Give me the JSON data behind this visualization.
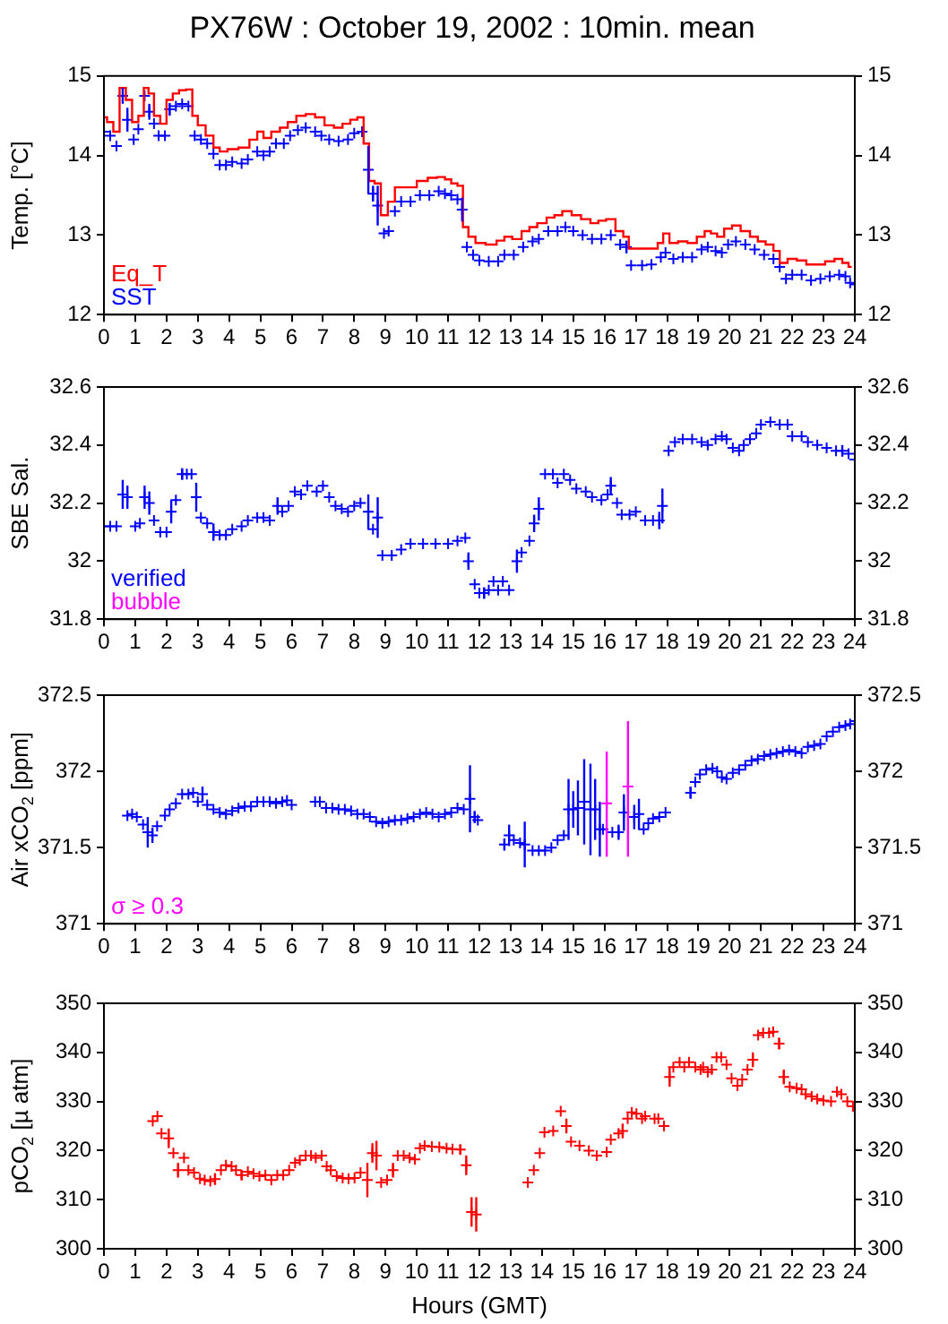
{
  "chart_data": [
    {
      "type": "scatter",
      "title": "PX76W : October 19, 2002 : 10min. mean",
      "ylabel": "Temp. [°C]",
      "xlim": [
        0,
        24
      ],
      "xticks": [
        0,
        1,
        2,
        3,
        4,
        5,
        6,
        7,
        8,
        9,
        10,
        11,
        12,
        13,
        14,
        15,
        16,
        17,
        18,
        19,
        20,
        21,
        22,
        23,
        24
      ],
      "ylim": [
        12,
        15
      ],
      "yticks": [
        12,
        13,
        14,
        15
      ],
      "y2lim": [
        12,
        15
      ],
      "y2ticks": [
        12,
        13,
        14,
        15
      ],
      "legend": "bottom left",
      "marker": "cross",
      "series": [
        {
          "name": "Eq_T",
          "color": "#ff0000",
          "type": "step",
          "marker": "none",
          "x": [
            0,
            0.2,
            0.4,
            0.6,
            0.8,
            1.0,
            1.2,
            1.35,
            1.5,
            1.7,
            1.9,
            2.1,
            2.3,
            2.5,
            2.75,
            2.9,
            3.1,
            3.4,
            3.6,
            3.8,
            4.1,
            4.5,
            4.8,
            5.0,
            5.2,
            5.5,
            5.75,
            6.0,
            6.3,
            6.6,
            6.9,
            7.2,
            7.5,
            7.75,
            8.0,
            8.2,
            8.4,
            8.55,
            8.75,
            8.95,
            9.2,
            9.4,
            9.8,
            10.2,
            10.5,
            10.8,
            11.0,
            11.2,
            11.4,
            11.55,
            11.75,
            12.0,
            12.4,
            12.7,
            12.9,
            13.2,
            13.5,
            13.7,
            14.0,
            14.3,
            14.5,
            14.8,
            15.1,
            15.4,
            15.7,
            15.9,
            16.2,
            16.5,
            16.7,
            16.85,
            17.3,
            17.6,
            17.8,
            17.95,
            18.2,
            18.5,
            18.8,
            19.1,
            19.3,
            19.5,
            19.7,
            19.95,
            20.2,
            20.5,
            20.8,
            21.0,
            21.3,
            21.5,
            21.7,
            22.0,
            22.3,
            22.6,
            22.9,
            23.2,
            23.5,
            23.7,
            23.9
          ],
          "values": [
            14.48,
            14.42,
            14.3,
            14.85,
            14.7,
            14.42,
            14.5,
            14.85,
            14.78,
            14.5,
            14.4,
            14.7,
            14.78,
            14.82,
            14.83,
            14.5,
            14.38,
            14.25,
            14.1,
            14.05,
            14.08,
            14.1,
            14.2,
            14.3,
            14.22,
            14.3,
            14.35,
            14.42,
            14.5,
            14.52,
            14.48,
            14.38,
            14.35,
            14.4,
            14.45,
            14.48,
            14.15,
            13.68,
            13.65,
            13.25,
            13.42,
            13.6,
            13.6,
            13.68,
            13.72,
            13.73,
            13.7,
            13.65,
            13.62,
            13.1,
            12.98,
            12.9,
            12.88,
            12.93,
            12.98,
            12.95,
            13.05,
            13.1,
            13.15,
            13.22,
            13.25,
            13.3,
            13.25,
            13.2,
            13.15,
            13.18,
            13.2,
            13.05,
            12.98,
            12.83,
            12.83,
            12.83,
            12.9,
            13.02,
            12.9,
            12.92,
            12.9,
            12.98,
            13.05,
            13.02,
            12.98,
            13.08,
            13.12,
            13.05,
            12.98,
            12.92,
            12.88,
            12.8,
            12.65,
            12.7,
            12.68,
            12.63,
            12.63,
            12.67,
            12.7,
            12.65,
            12.6
          ]
        },
        {
          "name": "SST",
          "color": "#0000ff",
          "x": [
            0,
            0.2,
            0.4,
            0.6,
            0.75,
            0.95,
            1.1,
            1.3,
            1.45,
            1.6,
            1.75,
            1.95,
            2.1,
            2.3,
            2.5,
            2.7,
            2.9,
            3.1,
            3.3,
            3.5,
            3.7,
            3.9,
            4.1,
            4.4,
            4.6,
            4.9,
            5.1,
            5.3,
            5.5,
            5.75,
            5.95,
            6.2,
            6.45,
            6.75,
            6.95,
            7.2,
            7.5,
            7.8,
            8.0,
            8.25,
            8.45,
            8.6,
            8.75,
            8.95,
            9.1,
            9.3,
            9.5,
            9.8,
            10.1,
            10.4,
            10.7,
            10.9,
            11.1,
            11.3,
            11.45,
            11.6,
            11.8,
            12.0,
            12.3,
            12.6,
            12.8,
            13.1,
            13.4,
            13.7,
            13.9,
            14.2,
            14.5,
            14.75,
            15.0,
            15.3,
            15.6,
            15.9,
            16.2,
            16.5,
            16.7,
            16.85,
            17.2,
            17.5,
            17.8,
            17.95,
            18.2,
            18.5,
            18.8,
            19.1,
            19.3,
            19.55,
            19.75,
            19.95,
            20.2,
            20.5,
            20.8,
            21.1,
            21.4,
            21.6,
            21.8,
            22.0,
            22.3,
            22.6,
            22.9,
            23.2,
            23.5,
            23.7,
            23.85,
            24.0
          ],
          "values": [
            14.3,
            14.25,
            14.12,
            14.75,
            14.45,
            14.2,
            14.33,
            14.75,
            14.55,
            14.4,
            14.25,
            14.25,
            14.58,
            14.62,
            14.65,
            14.62,
            14.25,
            14.2,
            14.15,
            14.02,
            13.88,
            13.88,
            13.92,
            13.9,
            13.95,
            14.05,
            14.0,
            14.05,
            14.15,
            14.15,
            14.25,
            14.32,
            14.35,
            14.3,
            14.25,
            14.2,
            14.18,
            14.2,
            14.28,
            14.3,
            13.82,
            13.52,
            13.37,
            13.02,
            13.05,
            13.3,
            13.42,
            13.42,
            13.5,
            13.5,
            13.55,
            13.52,
            13.5,
            13.45,
            13.32,
            12.85,
            12.75,
            12.68,
            12.67,
            12.67,
            12.75,
            12.75,
            12.85,
            12.92,
            12.95,
            13.05,
            13.05,
            13.1,
            13.05,
            13.0,
            12.95,
            12.95,
            13.0,
            12.88,
            12.85,
            12.62,
            12.62,
            12.63,
            12.72,
            12.78,
            12.7,
            12.72,
            12.72,
            12.82,
            12.85,
            12.8,
            12.78,
            12.88,
            12.92,
            12.88,
            12.82,
            12.75,
            12.7,
            12.6,
            12.45,
            12.5,
            12.5,
            12.43,
            12.45,
            12.48,
            12.5,
            12.48,
            12.4,
            12.38
          ],
          "errors": [
            null,
            null,
            null,
            0.1,
            0.15,
            null,
            null,
            null,
            0.1,
            null,
            null,
            null,
            0.08,
            null,
            null,
            null,
            null,
            null,
            null,
            null,
            null,
            null,
            null,
            null,
            null,
            null,
            null,
            null,
            null,
            null,
            null,
            null,
            null,
            null,
            null,
            null,
            null,
            null,
            null,
            null,
            0.3,
            0.1,
            0.25,
            null,
            null,
            null,
            null,
            null,
            null,
            null,
            null,
            null,
            null,
            null,
            0.15,
            null,
            null,
            null,
            null,
            null,
            null,
            null,
            null,
            null,
            null,
            null,
            null,
            null,
            null,
            null,
            null,
            null,
            null,
            null,
            0.08,
            null,
            null,
            null,
            null,
            null,
            null,
            null,
            null,
            null,
            null,
            null,
            null,
            null,
            null,
            null,
            null,
            null,
            null,
            null,
            null,
            null,
            null,
            null,
            null,
            null,
            null,
            null,
            null,
            null
          ]
        }
      ]
    },
    {
      "type": "scatter",
      "ylabel": "SBE Sal.",
      "xlim": [
        0,
        24
      ],
      "xticks": [
        0,
        1,
        2,
        3,
        4,
        5,
        6,
        7,
        8,
        9,
        10,
        11,
        12,
        13,
        14,
        15,
        16,
        17,
        18,
        19,
        20,
        21,
        22,
        23,
        24
      ],
      "ylim": [
        31.8,
        32.6
      ],
      "yticks": [
        {
          "value": 31.8,
          "label": "31.8"
        },
        {
          "value": 32,
          "label": "32"
        },
        {
          "value": 32.2,
          "label": "32.2"
        },
        {
          "value": 32.4,
          "label": "32.4"
        },
        {
          "value": 32.6,
          "label": "32.6"
        }
      ],
      "y2lim": [
        31.8,
        32.6
      ],
      "y2ticks": [
        {
          "value": 31.8,
          "label": "31.8"
        },
        {
          "value": 32,
          "label": "32"
        },
        {
          "value": 32.2,
          "label": "32.2"
        },
        {
          "value": 32.4,
          "label": "32.4"
        },
        {
          "value": 32.6,
          "label": "32.6"
        }
      ],
      "legend": "bottom left",
      "marker": "cross",
      "series": [
        {
          "name": "verified",
          "color": "#0000ff",
          "x": [
            0,
            0.2,
            0.4,
            0.6,
            0.75,
            1.0,
            1.15,
            1.3,
            1.45,
            1.6,
            1.8,
            2.0,
            2.15,
            2.3,
            2.5,
            2.65,
            2.8,
            2.95,
            3.1,
            3.3,
            3.5,
            3.7,
            3.9,
            4.1,
            4.4,
            4.6,
            4.9,
            5.1,
            5.3,
            5.55,
            5.7,
            5.9,
            6.1,
            6.3,
            6.5,
            6.8,
            7.0,
            7.2,
            7.4,
            7.6,
            7.8,
            8.0,
            8.2,
            8.45,
            8.6,
            8.75,
            8.9,
            9.2,
            9.5,
            9.8,
            10.2,
            10.6,
            11.0,
            11.3,
            11.55,
            11.65,
            11.85,
            12.0,
            12.15,
            12.3,
            12.45,
            12.6,
            12.75,
            12.95,
            13.2,
            13.35,
            13.6,
            13.75,
            13.9,
            14.1,
            14.35,
            14.5,
            14.7,
            14.9,
            15.1,
            15.4,
            15.6,
            15.9,
            16.1,
            16.2,
            16.4,
            16.55,
            16.8,
            17.0,
            17.3,
            17.55,
            17.75,
            17.85,
            18.05,
            18.25,
            18.5,
            18.8,
            19.1,
            19.3,
            19.55,
            19.75,
            19.9,
            20.1,
            20.3,
            20.45,
            20.65,
            20.85,
            21.0,
            21.3,
            21.6,
            21.85,
            22.0,
            22.3,
            22.5,
            22.8,
            23.1,
            23.4,
            23.6,
            23.8,
            24.0
          ],
          "values": [
            32.12,
            32.12,
            32.12,
            32.23,
            32.22,
            32.12,
            32.13,
            32.22,
            32.2,
            32.14,
            32.1,
            32.1,
            32.17,
            32.21,
            32.3,
            32.3,
            32.3,
            32.22,
            32.15,
            32.13,
            32.1,
            32.09,
            32.09,
            32.11,
            32.12,
            32.14,
            32.15,
            32.15,
            32.14,
            32.19,
            32.17,
            32.19,
            32.24,
            32.23,
            32.26,
            32.24,
            32.26,
            32.22,
            32.19,
            32.18,
            32.17,
            32.19,
            32.2,
            32.17,
            32.11,
            32.15,
            32.02,
            32.02,
            32.04,
            32.06,
            32.06,
            32.06,
            32.06,
            32.07,
            32.08,
            32.0,
            31.92,
            31.89,
            31.89,
            31.9,
            31.93,
            31.9,
            31.93,
            31.9,
            32.0,
            32.03,
            32.07,
            32.13,
            32.18,
            32.3,
            32.3,
            32.27,
            32.3,
            32.28,
            32.25,
            32.24,
            32.22,
            32.21,
            32.23,
            32.26,
            32.2,
            32.16,
            32.16,
            32.17,
            32.14,
            32.14,
            32.14,
            32.19,
            32.38,
            32.41,
            32.42,
            32.42,
            32.41,
            32.4,
            32.42,
            32.43,
            32.42,
            32.39,
            32.38,
            32.4,
            32.42,
            32.44,
            32.47,
            32.48,
            32.47,
            32.47,
            32.43,
            32.43,
            32.41,
            32.4,
            32.39,
            32.38,
            32.38,
            32.37,
            32.35
          ],
          "errors": [
            null,
            null,
            null,
            0.05,
            0.04,
            null,
            null,
            0.04,
            0.04,
            null,
            null,
            null,
            0.04,
            null,
            0.02,
            null,
            null,
            0.05,
            null,
            null,
            0.03,
            null,
            null,
            null,
            null,
            null,
            null,
            null,
            null,
            0.03,
            null,
            null,
            null,
            null,
            null,
            null,
            null,
            null,
            null,
            null,
            null,
            null,
            null,
            0.06,
            null,
            0.07,
            null,
            null,
            null,
            null,
            null,
            null,
            null,
            null,
            null,
            0.03,
            null,
            null,
            0.02,
            null,
            null,
            null,
            null,
            null,
            0.04,
            null,
            null,
            0.03,
            0.04,
            null,
            null,
            null,
            null,
            null,
            null,
            null,
            null,
            null,
            null,
            0.03,
            null,
            null,
            null,
            null,
            null,
            null,
            0.03,
            0.06,
            null,
            null,
            null,
            null,
            null,
            null,
            null,
            null,
            null,
            null,
            null,
            null,
            null,
            null,
            null,
            null,
            null,
            null,
            null,
            null,
            null,
            null,
            null,
            null,
            0.02,
            null,
            null
          ]
        },
        {
          "name": "bubble",
          "color": "#ff00ff"
        }
      ]
    },
    {
      "type": "scatter",
      "ylabel": "Air xCO$_{2}$ [ppm]",
      "xlim": [
        0,
        24
      ],
      "xticks": [
        0,
        1,
        2,
        3,
        4,
        5,
        6,
        7,
        8,
        9,
        10,
        11,
        12,
        13,
        14,
        15,
        16,
        17,
        18,
        19,
        20,
        21,
        22,
        23,
        24
      ],
      "ylim": [
        371,
        372.5
      ],
      "yticks": [
        371,
        371.5,
        372,
        372.5
      ],
      "y2lim": [
        371,
        372.5
      ],
      "y2ticks": [
        371,
        371.5,
        372,
        372.5
      ],
      "legend": "bottom left",
      "marker": "cross",
      "series": [
        {
          "color": "#0000ff",
          "x": [
            0.75,
            0.9,
            1.05,
            1.25,
            1.4,
            1.55,
            1.7,
            1.95,
            2.1,
            2.3,
            2.5,
            2.7,
            2.85,
            3.0,
            3.15,
            3.3,
            3.5,
            3.7,
            3.9,
            4.1,
            4.3,
            4.5,
            4.7,
            4.9,
            5.1,
            5.3,
            5.5,
            5.7,
            5.85,
            6.0,
            6.75,
            6.9,
            7.1,
            7.3,
            7.5,
            7.7,
            7.9,
            8.1,
            8.3,
            8.5,
            8.7,
            8.9,
            9.1,
            9.3,
            9.5,
            9.7,
            9.9,
            10.1,
            10.3,
            10.5,
            10.7,
            10.9,
            11.1,
            11.3,
            11.5,
            11.7,
            11.85,
            11.95,
            12.8,
            12.95,
            13.1,
            13.3,
            13.45,
            13.7,
            13.9,
            14.1,
            14.3,
            14.5,
            14.7,
            14.85,
            15.0,
            15.15,
            15.35,
            15.55,
            15.7,
            15.85,
            15.95,
            16.25,
            16.45,
            16.62,
            16.95,
            17.1,
            17.25,
            17.4,
            17.55,
            17.75,
            17.95,
            18.75,
            18.9,
            19.05,
            19.25,
            19.45,
            19.6,
            19.75,
            19.9,
            20.1,
            20.3,
            20.5,
            20.7,
            20.9,
            21.1,
            21.3,
            21.5,
            21.7,
            21.9,
            22.1,
            22.3,
            22.5,
            22.7,
            22.9,
            23.1,
            23.3,
            23.5,
            23.7,
            23.85,
            24.0
          ],
          "values": [
            371.71,
            371.72,
            371.7,
            371.65,
            371.6,
            371.58,
            371.64,
            371.71,
            371.75,
            371.79,
            371.85,
            371.85,
            371.86,
            371.8,
            371.85,
            371.78,
            371.75,
            371.73,
            371.72,
            371.74,
            371.76,
            371.77,
            371.77,
            371.8,
            371.8,
            371.8,
            371.79,
            371.8,
            371.81,
            371.78,
            371.8,
            371.8,
            371.76,
            371.76,
            371.75,
            371.75,
            371.74,
            371.72,
            371.72,
            371.7,
            371.67,
            371.66,
            371.67,
            371.68,
            371.68,
            371.69,
            371.7,
            371.72,
            371.73,
            371.72,
            371.7,
            371.72,
            371.73,
            371.76,
            371.75,
            371.82,
            371.7,
            371.68,
            371.52,
            371.58,
            371.55,
            371.53,
            371.52,
            371.48,
            371.48,
            371.48,
            371.5,
            371.55,
            371.58,
            371.75,
            371.75,
            371.76,
            371.8,
            371.75,
            371.75,
            371.62,
            371.62,
            371.6,
            371.6,
            371.73,
            371.7,
            371.72,
            371.62,
            371.66,
            371.69,
            371.7,
            371.73,
            371.86,
            371.93,
            371.98,
            372.01,
            372.02,
            372.0,
            371.96,
            371.95,
            371.99,
            372.01,
            372.04,
            372.07,
            372.08,
            372.1,
            372.11,
            372.12,
            372.13,
            372.14,
            372.13,
            372.12,
            372.16,
            372.17,
            372.18,
            372.23,
            372.26,
            372.29,
            372.3,
            372.31,
            372.33
          ],
          "errors": [
            null,
            null,
            null,
            null,
            0.1,
            0.05,
            null,
            null,
            null,
            null,
            null,
            null,
            null,
            null,
            0.05,
            null,
            null,
            null,
            null,
            null,
            null,
            null,
            null,
            null,
            null,
            null,
            null,
            null,
            null,
            null,
            null,
            null,
            null,
            null,
            null,
            null,
            null,
            null,
            null,
            null,
            null,
            null,
            null,
            null,
            null,
            null,
            null,
            null,
            null,
            null,
            null,
            null,
            null,
            null,
            null,
            0.22,
            0.04,
            null,
            0.04,
            0.07,
            null,
            null,
            0.15,
            null,
            null,
            null,
            null,
            null,
            null,
            0.2,
            0.12,
            0.18,
            0.28,
            0.3,
            0.2,
            0.18,
            null,
            null,
            0.05,
            0.12,
            0.08,
            0.1,
            null,
            null,
            null,
            null,
            null,
            0.04,
            null,
            null,
            null,
            null,
            null,
            null,
            null,
            null,
            null,
            null,
            null,
            null,
            null,
            null,
            null,
            null,
            null,
            null,
            null,
            null,
            null,
            null,
            null,
            null,
            null,
            null,
            null,
            null
          ]
        },
        {
          "name": "σ ≥ 0.3",
          "color": "#ff00ff",
          "x": [
            16.07,
            16.75
          ],
          "values": [
            371.79,
            371.9
          ],
          "errors": [
            [
              371.44,
              372.13
            ],
            [
              371.44,
              372.33
            ]
          ]
        }
      ]
    },
    {
      "type": "scatter",
      "ylabel": "pCO$_{2}$ [µ atm]",
      "xlabel": "Hours (GMT)",
      "xlim": [
        0,
        24
      ],
      "xticks": [
        0,
        1,
        2,
        3,
        4,
        5,
        6,
        7,
        8,
        9,
        10,
        11,
        12,
        13,
        14,
        15,
        16,
        17,
        18,
        19,
        20,
        21,
        22,
        23,
        24
      ],
      "ylim": [
        300,
        350
      ],
      "yticks": [
        300,
        310,
        320,
        330,
        340,
        350
      ],
      "y2lim": [
        300,
        350
      ],
      "y2ticks": [
        300,
        310,
        320,
        330,
        340,
        350
      ],
      "marker": "cross",
      "series": [
        {
          "color": "#ff0000",
          "x": [
            1.56,
            1.71,
            1.84,
            2.07,
            2.22,
            2.37,
            2.56,
            2.7,
            2.88,
            3.07,
            3.22,
            3.4,
            3.55,
            3.74,
            3.9,
            4.08,
            4.22,
            4.4,
            4.6,
            4.78,
            4.97,
            5.16,
            5.35,
            5.54,
            5.73,
            5.92,
            6.11,
            6.26,
            6.45,
            6.62,
            6.77,
            6.96,
            7.12,
            7.25,
            7.44,
            7.63,
            7.82,
            8.01,
            8.2,
            8.42,
            8.58,
            8.71,
            8.86,
            9.05,
            9.24,
            9.39,
            9.58,
            9.77,
            9.94,
            10.1,
            10.25,
            10.48,
            10.72,
            10.95,
            11.14,
            11.39,
            11.58,
            11.75,
            11.9,
            13.55,
            13.74,
            13.93,
            14.08,
            14.36,
            14.6,
            14.78,
            14.93,
            15.2,
            15.5,
            15.75,
            16.07,
            16.2,
            16.45,
            16.58,
            16.74,
            16.87,
            17.02,
            17.2,
            17.3,
            17.6,
            17.72,
            17.9,
            18.08,
            18.2,
            18.4,
            18.55,
            18.7,
            18.9,
            19.07,
            19.15,
            19.3,
            19.43,
            19.58,
            19.73,
            19.9,
            20.06,
            20.25,
            20.4,
            20.57,
            20.74,
            20.91,
            21.07,
            21.26,
            21.39,
            21.58,
            21.73,
            21.92,
            22.14,
            22.3,
            22.43,
            22.62,
            22.8,
            23.0,
            23.24,
            23.43,
            23.57,
            23.76,
            23.94
          ],
          "values": [
            326,
            327,
            323.5,
            322.5,
            319.5,
            316,
            318.5,
            316,
            315.5,
            314.3,
            314,
            313.8,
            314.2,
            316,
            317,
            316.8,
            316,
            315,
            315.7,
            315.3,
            314.8,
            315,
            314,
            315,
            315,
            316,
            317.5,
            318,
            319,
            319,
            318.5,
            319,
            316.8,
            316,
            314.8,
            314.4,
            314.3,
            314.4,
            315.5,
            314,
            319.5,
            319,
            313.5,
            314,
            316,
            319,
            319,
            318.5,
            318.2,
            320.5,
            321,
            320.8,
            320.7,
            320.5,
            320.3,
            320.2,
            317,
            307.5,
            307,
            313.5,
            316,
            319.5,
            323.7,
            324,
            328,
            325,
            321.8,
            321,
            320,
            319,
            319.7,
            322.2,
            323.5,
            324,
            326.5,
            327.8,
            327.5,
            326.5,
            327,
            326.5,
            326.5,
            325,
            335,
            337,
            338,
            337,
            338,
            337,
            336.5,
            337,
            336,
            336.5,
            339,
            339,
            337.5,
            334.7,
            333.2,
            334.5,
            336.5,
            338.5,
            343.5,
            344,
            344,
            344.2,
            341.8,
            335,
            333,
            332.7,
            332.5,
            331.5,
            331,
            330.5,
            330.2,
            330,
            332,
            331.5,
            330,
            329
          ],
          "errors": [
            null,
            null,
            null,
            2,
            null,
            1.5,
            null,
            null,
            null,
            null,
            null,
            null,
            1.2,
            null,
            null,
            null,
            null,
            1,
            null,
            null,
            null,
            null,
            null,
            null,
            null,
            null,
            null,
            null,
            null,
            null,
            null,
            null,
            null,
            null,
            null,
            null,
            null,
            null,
            null,
            3.5,
            2,
            3,
            null,
            null,
            1.5,
            null,
            null,
            null,
            null,
            null,
            null,
            null,
            null,
            null,
            null,
            1,
            2,
            3,
            3.5,
            null,
            null,
            null,
            null,
            null,
            null,
            1.5,
            null,
            null,
            null,
            null,
            null,
            null,
            null,
            1.5,
            null,
            null,
            null,
            null,
            null,
            null,
            null,
            null,
            2,
            null,
            null,
            null,
            null,
            null,
            null,
            null,
            null,
            null,
            null,
            null,
            null,
            null,
            null,
            null,
            null,
            1.5,
            null,
            null,
            null,
            null,
            1.2,
            1.5,
            null,
            null,
            null,
            null,
            null,
            null,
            null,
            null,
            null,
            null,
            null,
            null
          ]
        }
      ]
    }
  ]
}
